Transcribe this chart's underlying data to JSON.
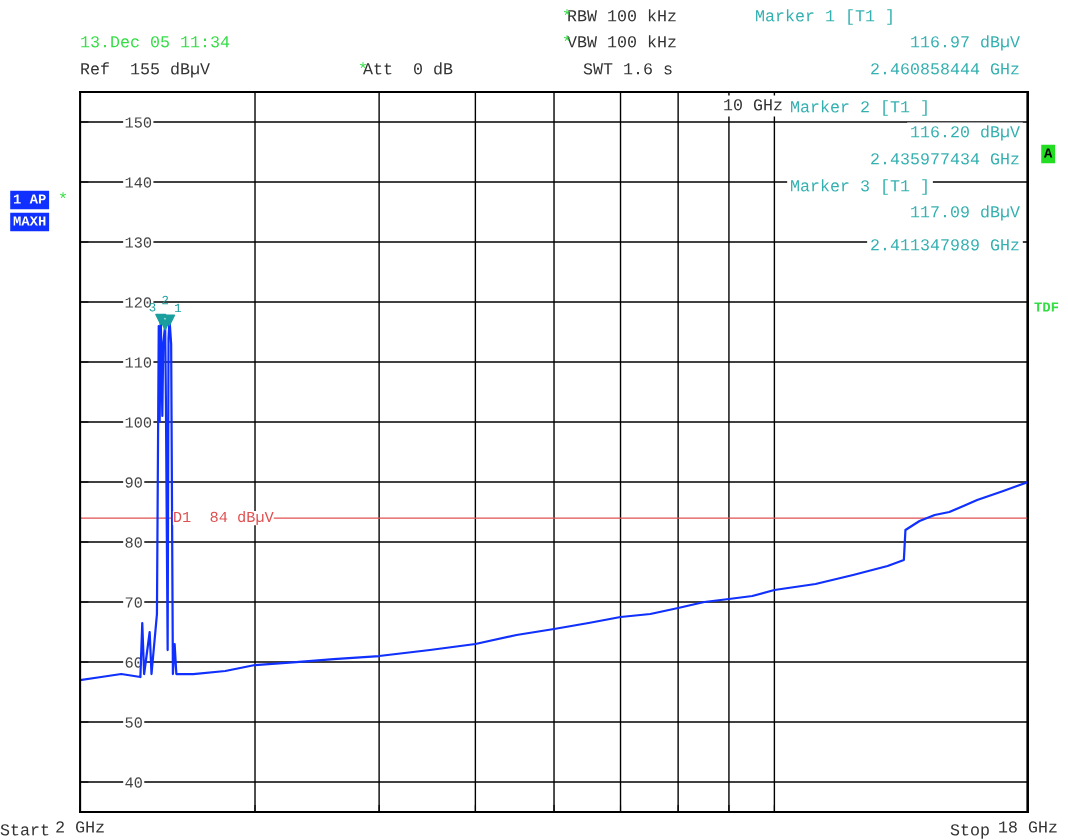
{
  "chart_data": {
    "type": "line",
    "annotations": [
      "13.Dec 05 11:34",
      "Ref  155 dBµV",
      "Att  0 dB",
      "RBW 100 kHz",
      "VBW 100 kHz",
      "SWT 1.6 s",
      "Marker 1 [T1 ]",
      "116.97 dBµV",
      "2.460858444 GHz",
      "Marker 2 [T1 ]",
      "116.20 dBµV",
      "2.435977434 GHz",
      "Marker 3 [T1 ]",
      "117.09 dBµV",
      "2.411347989 GHz",
      "1 AP",
      "MAXH",
      "A",
      "TDF",
      "10 GHz",
      "Start",
      "Stop",
      "*",
      "*",
      "*",
      "*",
      {
        "text": "1",
        "x": 2.460858444,
        "y": 116.97
      },
      {
        "text": "2",
        "x": 2.435977434,
        "y": 116.2
      },
      {
        "text": "3",
        "x": 2.411347989,
        "y": 117.09
      }
    ],
    "log": "x",
    "xlim": [
      2,
      18
    ],
    "xticks": [
      {
        "value": 2,
        "label": "2 GHz"
      },
      {
        "value": 3,
        "label": null
      },
      {
        "value": 4,
        "label": null
      },
      {
        "value": 5,
        "label": null
      },
      {
        "value": 6,
        "label": null
      },
      {
        "value": 7,
        "label": null
      },
      {
        "value": 8,
        "label": null
      },
      {
        "value": 9,
        "label": null
      },
      {
        "value": 10,
        "label": null
      },
      {
        "value": 18,
        "label": "18 GHz"
      }
    ],
    "ylim": [
      35,
      155
    ],
    "yticks": [
      40,
      50,
      60,
      70,
      80,
      90,
      100,
      110,
      120,
      130,
      140,
      150
    ],
    "grid": true,
    "marker": "none",
    "ref_lines": [
      {
        "axis": "y",
        "value": 84,
        "label": "D1  84 dBµV",
        "color": "#e05050"
      }
    ],
    "series": [
      {
        "color": "#1030ff",
        "x": [
          2.0,
          2.1,
          2.2,
          2.3,
          2.31,
          2.32,
          2.35,
          2.36,
          2.39,
          2.4,
          2.405,
          2.411347989,
          2.42,
          2.425,
          2.435977434,
          2.44,
          2.45,
          2.455,
          2.460858444,
          2.47,
          2.48,
          2.49,
          2.5,
          2.6,
          2.8,
          3.0,
          3.3,
          3.6,
          4.0,
          4.5,
          5.0,
          5.5,
          6.0,
          6.5,
          7.0,
          7.5,
          8.0,
          8.5,
          9.0,
          9.5,
          10,
          11,
          12,
          13,
          13.5,
          13.55,
          14,
          14.5,
          15,
          15.5,
          16,
          17,
          18
        ],
        "values": [
          57,
          57.5,
          58,
          57.5,
          66.5,
          58,
          65,
          58,
          68,
          116,
          100,
          117.09,
          101,
          113,
          116.2,
          104,
          62,
          114,
          116.97,
          113,
          58,
          63,
          58,
          58,
          58.5,
          59.5,
          60,
          60.5,
          61,
          62,
          63,
          64.5,
          65.5,
          66.5,
          67.5,
          68,
          69,
          70,
          70.5,
          71,
          72,
          73,
          74.5,
          76,
          77,
          82,
          83.5,
          84.5,
          85,
          86,
          87,
          88.5,
          90
        ]
      },
      {
        "type": "scatter",
        "marker": "triangle",
        "color": "#1a9e9e",
        "x": [
          2.460858444,
          2.435977434,
          2.411347989
        ],
        "values": [
          116.97,
          116.2,
          117.09
        ]
      }
    ]
  }
}
